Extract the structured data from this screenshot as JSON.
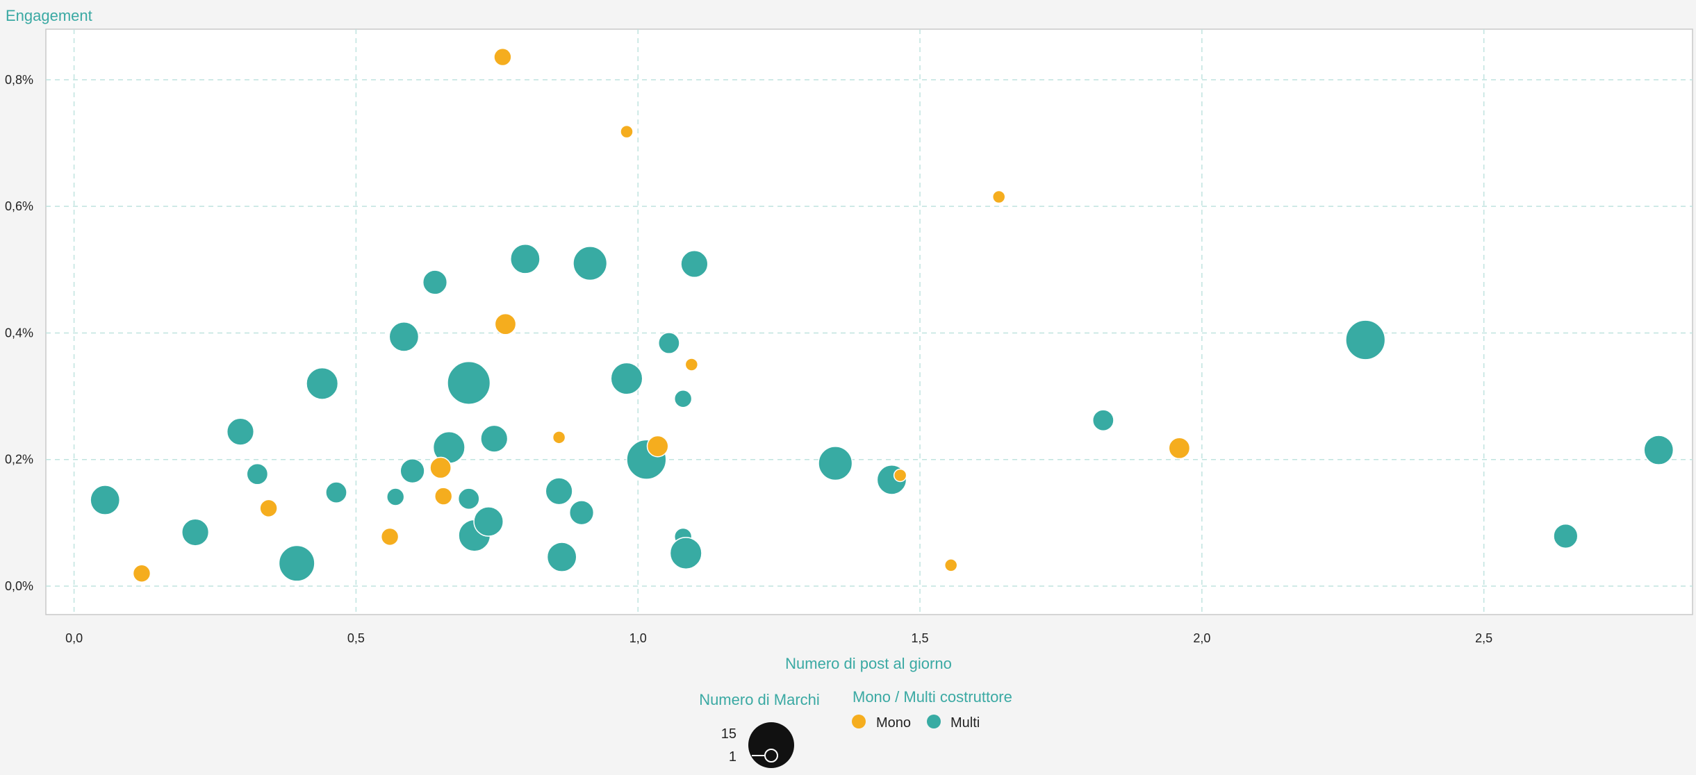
{
  "colors": {
    "mono": "#f5ad1e",
    "multi": "#38aba3",
    "title": "#3aa9a3",
    "grid": "#bfe3df",
    "frame": "#c8c8c8",
    "plot_bg": "#ffffff",
    "page_bg": "#f4f4f4",
    "size_legend": "#111111"
  },
  "chart_data": {
    "type": "scatter",
    "ylabel": "Engagement",
    "xlabel": "Numero di post al giorno",
    "xlim": [
      -0.05,
      2.87
    ],
    "ylim": [
      -0.00045,
      0.0088
    ],
    "x_ticks": [
      0,
      0.5,
      1.0,
      1.5,
      2.0,
      2.5
    ],
    "x_tick_labels": [
      "0,0",
      "0,5",
      "1,0",
      "1,5",
      "2,0",
      "2,5"
    ],
    "y_ticks": [
      0,
      0.002,
      0.004,
      0.006,
      0.008
    ],
    "y_tick_labels": [
      "0,0%",
      "0,2%",
      "0,4%",
      "0,6%",
      "0,8%"
    ],
    "grid": true,
    "size_legend": {
      "title": "Numero di Marchi",
      "max": 15,
      "min": 1,
      "max_label": "15",
      "min_label": "1"
    },
    "color_legend": {
      "title": "Mono / Multi costruttore",
      "items": [
        {
          "label": "Mono",
          "color_key": "mono"
        },
        {
          "label": "Multi",
          "color_key": "multi"
        }
      ]
    },
    "series": [
      {
        "name": "Multi",
        "color_key": "multi",
        "points": [
          {
            "x": 0.055,
            "y": 0.00136,
            "brands": 6
          },
          {
            "x": 0.215,
            "y": 0.00085,
            "brands": 5
          },
          {
            "x": 0.295,
            "y": 0.00244,
            "brands": 5
          },
          {
            "x": 0.325,
            "y": 0.00177,
            "brands": 3
          },
          {
            "x": 0.395,
            "y": 0.00036,
            "brands": 9
          },
          {
            "x": 0.44,
            "y": 0.0032,
            "brands": 7
          },
          {
            "x": 0.465,
            "y": 0.00148,
            "brands": 3
          },
          {
            "x": 0.57,
            "y": 0.00141,
            "brands": 2
          },
          {
            "x": 0.585,
            "y": 0.00394,
            "brands": 6
          },
          {
            "x": 0.6,
            "y": 0.00182,
            "brands": 4
          },
          {
            "x": 0.64,
            "y": 0.0048,
            "brands": 4
          },
          {
            "x": 0.665,
            "y": 0.00219,
            "brands": 7
          },
          {
            "x": 0.7,
            "y": 0.00138,
            "brands": 3
          },
          {
            "x": 0.7,
            "y": 0.00321,
            "brands": 13
          },
          {
            "x": 0.71,
            "y": 0.0008,
            "brands": 7
          },
          {
            "x": 0.735,
            "y": 0.00102,
            "brands": 6
          },
          {
            "x": 0.745,
            "y": 0.00233,
            "brands": 5
          },
          {
            "x": 0.8,
            "y": 0.00517,
            "brands": 6
          },
          {
            "x": 0.86,
            "y": 0.0015,
            "brands": 5
          },
          {
            "x": 0.865,
            "y": 0.00046,
            "brands": 6
          },
          {
            "x": 0.9,
            "y": 0.00116,
            "brands": 4
          },
          {
            "x": 0.915,
            "y": 0.0051,
            "brands": 8
          },
          {
            "x": 0.98,
            "y": 0.00328,
            "brands": 7
          },
          {
            "x": 1.015,
            "y": 0.002,
            "brands": 11
          },
          {
            "x": 1.055,
            "y": 0.00384,
            "brands": 3
          },
          {
            "x": 1.08,
            "y": 0.00296,
            "brands": 2
          },
          {
            "x": 1.08,
            "y": 0.00078,
            "brands": 2
          },
          {
            "x": 1.085,
            "y": 0.00052,
            "brands": 7
          },
          {
            "x": 1.1,
            "y": 0.00509,
            "brands": 5
          },
          {
            "x": 1.35,
            "y": 0.00194,
            "brands": 8
          },
          {
            "x": 1.45,
            "y": 0.00168,
            "brands": 6
          },
          {
            "x": 1.825,
            "y": 0.00262,
            "brands": 3
          },
          {
            "x": 2.29,
            "y": 0.00389,
            "brands": 11
          },
          {
            "x": 2.645,
            "y": 0.00079,
            "brands": 4
          },
          {
            "x": 2.81,
            "y": 0.00215,
            "brands": 6
          }
        ]
      },
      {
        "name": "Mono",
        "color_key": "mono",
        "points": [
          {
            "x": 0.12,
            "y": 0.0002,
            "brands": 2
          },
          {
            "x": 0.345,
            "y": 0.00123,
            "brands": 2
          },
          {
            "x": 0.56,
            "y": 0.00078,
            "brands": 2
          },
          {
            "x": 0.65,
            "y": 0.00187,
            "brands": 3
          },
          {
            "x": 0.655,
            "y": 0.00142,
            "brands": 2
          },
          {
            "x": 0.76,
            "y": 0.00836,
            "brands": 2
          },
          {
            "x": 0.765,
            "y": 0.00414,
            "brands": 3
          },
          {
            "x": 0.86,
            "y": 0.00235,
            "brands": 1
          },
          {
            "x": 0.98,
            "y": 0.00718,
            "brands": 1
          },
          {
            "x": 1.035,
            "y": 0.00221,
            "brands": 3
          },
          {
            "x": 1.095,
            "y": 0.0035,
            "brands": 1
          },
          {
            "x": 1.465,
            "y": 0.00175,
            "brands": 1
          },
          {
            "x": 1.555,
            "y": 0.00033,
            "brands": 1
          },
          {
            "x": 1.64,
            "y": 0.00615,
            "brands": 1
          },
          {
            "x": 1.96,
            "y": 0.00218,
            "brands": 3
          }
        ]
      }
    ]
  }
}
